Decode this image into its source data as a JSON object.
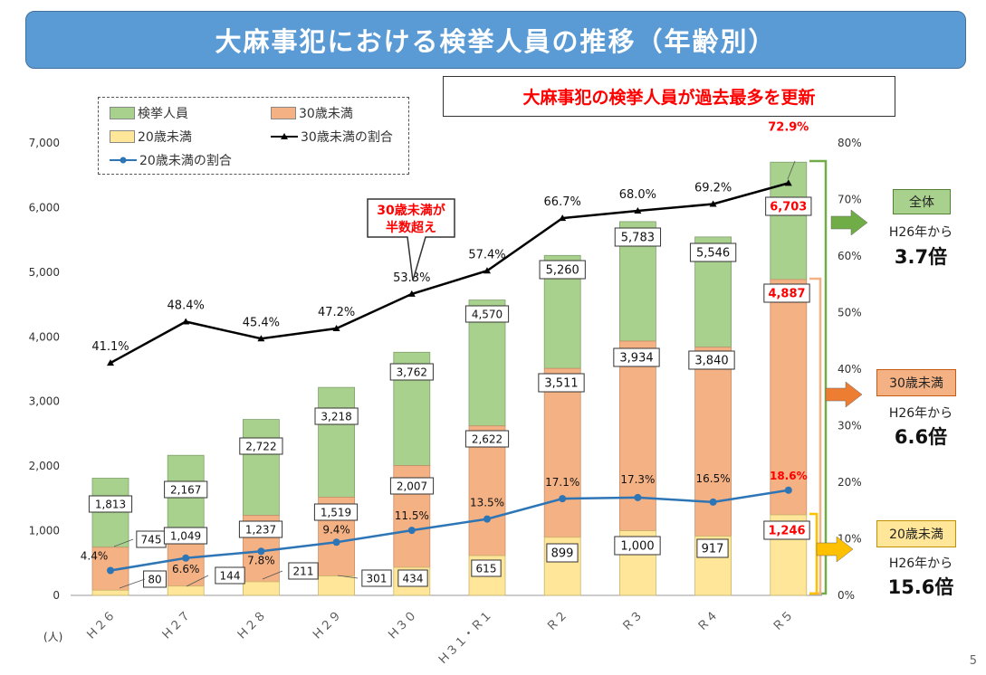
{
  "title": "大麻事犯における検挙人員の推移（年齢別）",
  "headline": "大麻事犯の検挙人員が過去最多を更新",
  "legend": {
    "total": "検挙人員",
    "under30": "30歳未満",
    "under20": "20歳未満",
    "ratio30": "30歳未満の割合",
    "ratio20": "20歳未満の割合"
  },
  "callout": {
    "line1": "30歳未満が",
    "line2": "半数超え"
  },
  "unit_label": "(人)",
  "side": {
    "total": {
      "label": "全体",
      "from": "H26年から",
      "mult": "3.7倍"
    },
    "under30": {
      "label": "30歳未満",
      "from": "H26年から",
      "mult": "6.6倍"
    },
    "under20": {
      "label": "20歳未満",
      "from": "H26年から",
      "mult": "15.6倍"
    }
  },
  "page_number": "5",
  "colors": {
    "title_bg": "#5b9bd5",
    "total": "#a9d18e",
    "under30": "#f4b183",
    "under20": "#ffe699",
    "ratio30_line": "#000000",
    "ratio20_line": "#2e75b6",
    "highlight": "#ff0000",
    "arrow_total": "#70ad47",
    "arrow_under30": "#ed7d31",
    "arrow_under20": "#ffc000"
  },
  "chart_data": {
    "type": "bar",
    "stacked": true,
    "categories": [
      "Ｈ２６",
      "Ｈ２７",
      "Ｈ２８",
      "Ｈ２９",
      "Ｈ３０",
      "Ｈ３１・Ｒ１",
      "Ｒ２",
      "Ｒ３",
      "Ｒ４",
      "Ｒ５"
    ],
    "series": [
      {
        "name": "検挙人員",
        "values": [
          1813,
          2167,
          2722,
          3218,
          3762,
          4570,
          5260,
          5783,
          5546,
          6703
        ],
        "labels": [
          "1,813",
          "2,167",
          "2,722",
          "3,218",
          "3,762",
          "4,570",
          "5,260",
          "5,783",
          "5,546",
          "6,703"
        ]
      },
      {
        "name": "30歳未満",
        "values": [
          745,
          1049,
          1237,
          1519,
          2007,
          2622,
          3511,
          3934,
          3840,
          4887
        ],
        "labels": [
          "745",
          "1,049",
          "1,237",
          "1,519",
          "2,007",
          "2,622",
          "3,511",
          "3,934",
          "3,840",
          "4,887"
        ]
      },
      {
        "name": "20歳未満",
        "values": [
          80,
          144,
          211,
          301,
          434,
          615,
          899,
          1000,
          917,
          1246
        ],
        "labels": [
          "80",
          "144",
          "211",
          "301",
          "434",
          "615",
          "899",
          "1,000",
          "917",
          "1,246"
        ]
      },
      {
        "name": "30歳未満の割合",
        "axis": "right",
        "type": "line",
        "values": [
          41.1,
          48.4,
          45.4,
          47.2,
          53.3,
          57.4,
          66.7,
          68.0,
          69.2,
          72.9
        ],
        "labels": [
          "41.1%",
          "48.4%",
          "45.4%",
          "47.2%",
          "53.3%",
          "57.4%",
          "66.7%",
          "68.0%",
          "69.2%",
          "72.9%"
        ]
      },
      {
        "name": "20歳未満の割合",
        "axis": "right",
        "type": "line",
        "values": [
          4.4,
          6.6,
          7.8,
          9.4,
          11.5,
          13.5,
          17.1,
          17.3,
          16.5,
          18.6
        ],
        "labels": [
          "4.4%",
          "6.6%",
          "7.8%",
          "9.4%",
          "11.5%",
          "13.5%",
          "17.1%",
          "17.3%",
          "16.5%",
          "18.6%"
        ]
      }
    ],
    "ylim": [
      0,
      7000
    ],
    "y_ticks": [
      "0",
      "1,000",
      "2,000",
      "3,000",
      "4,000",
      "5,000",
      "6,000",
      "7,000"
    ],
    "y2lim": [
      0,
      80
    ],
    "y2_ticks": [
      "0%",
      "10%",
      "20%",
      "30%",
      "40%",
      "50%",
      "60%",
      "70%",
      "80%"
    ],
    "grid": false,
    "legend_position": "top-left"
  }
}
